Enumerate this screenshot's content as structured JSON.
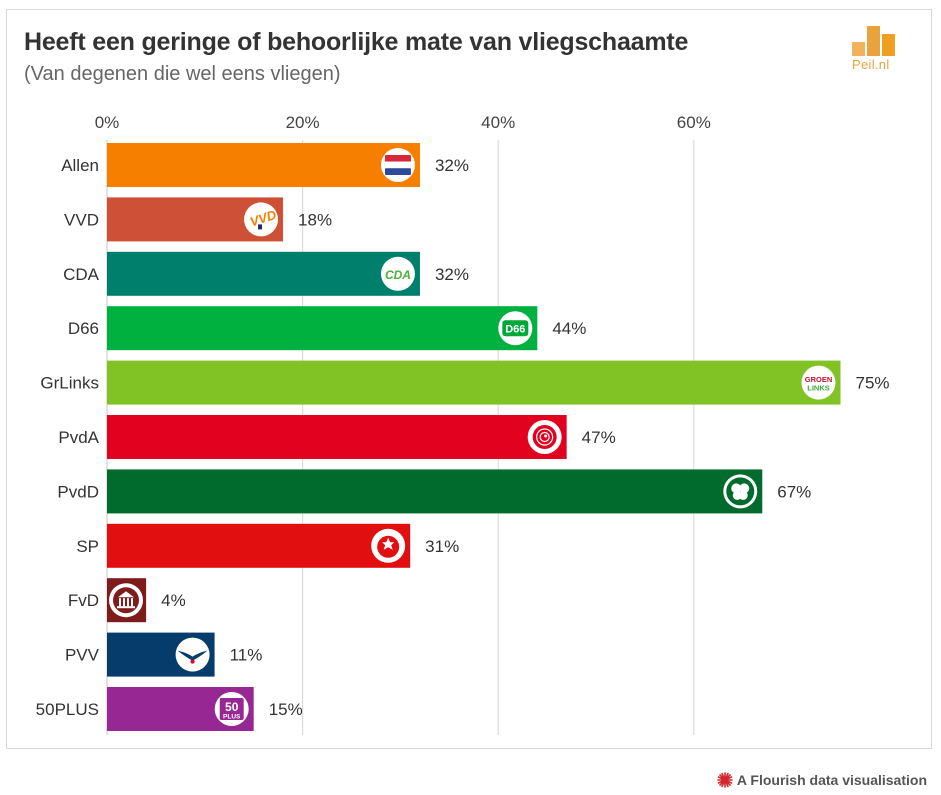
{
  "header": {
    "title": "Heeft een geringe of behoorlijke mate van vliegschaamte",
    "subtitle": "(Van degenen die wel eens vliegen)"
  },
  "brand": {
    "logo_text": "Peil.nl",
    "logo_icon": "bar-chart-logo-icon",
    "accent": "#e8a33c"
  },
  "footer": {
    "credit": "A Flourish data visualisation",
    "credit_icon": "flourish-burst-icon"
  },
  "chart_data": {
    "type": "bar",
    "orientation": "horizontal",
    "title": "Heeft een geringe of behoorlijke mate van vliegschaamte",
    "subtitle": "(Van degenen die wel eens vliegen)",
    "xlabel": "",
    "ylabel": "",
    "xlim": [
      0,
      80
    ],
    "ticks": [
      0,
      20,
      40,
      60
    ],
    "tick_labels": [
      "0%",
      "20%",
      "40%",
      "60%"
    ],
    "axis_position": "top",
    "grid": true,
    "categories": [
      "Allen",
      "VVD",
      "CDA",
      "D66",
      "GrLinks",
      "PvdA",
      "PvdD",
      "SP",
      "FvD",
      "PVV",
      "50PLUS"
    ],
    "values": [
      32,
      18,
      32,
      44,
      75,
      47,
      67,
      31,
      4,
      11,
      15
    ],
    "value_labels": [
      "32%",
      "18%",
      "32%",
      "44%",
      "75%",
      "47%",
      "67%",
      "31%",
      "4%",
      "11%",
      "15%"
    ],
    "colors": [
      "#f77f00",
      "#cd5037",
      "#00806c",
      "#00b13f",
      "#81c325",
      "#e2011f",
      "#006b2d",
      "#e10f0f",
      "#7e1c1c",
      "#053c6b",
      "#962793"
    ],
    "icons": [
      "dutch-flag-icon",
      "vvd-logo-icon",
      "cda-logo-icon",
      "d66-logo-icon",
      "groenlinks-logo-icon",
      "pvda-rose-icon",
      "pvdd-logo-icon",
      "sp-tomato-icon",
      "fvd-temple-icon",
      "pvv-seagull-icon",
      "50plus-logo-icon"
    ],
    "icon_texts": {
      "vvd": "VVD",
      "cda": "CDA",
      "d66": "D66",
      "groenlinks_top": "GROEN",
      "groenlinks_bottom": "LINKS",
      "fiftyplus_top": "50",
      "fiftyplus_bottom": "PLUS"
    }
  }
}
